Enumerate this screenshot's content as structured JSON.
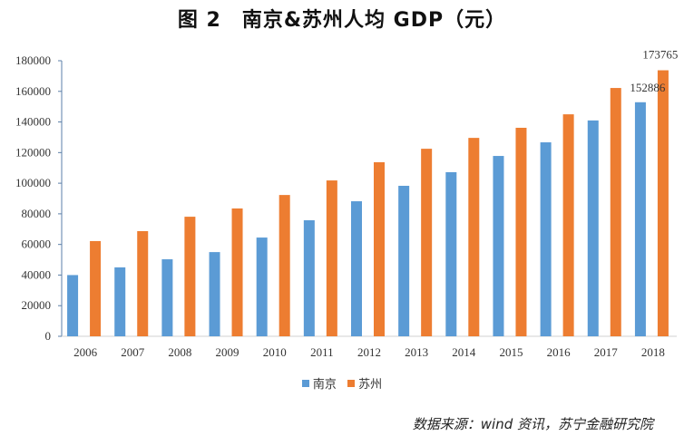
{
  "chart_data": {
    "type": "bar",
    "title": "图 2　南京&苏州人均 GDP（元）",
    "categories": [
      "2006",
      "2007",
      "2008",
      "2009",
      "2010",
      "2011",
      "2012",
      "2013",
      "2014",
      "2015",
      "2016",
      "2017",
      "2018"
    ],
    "series": [
      {
        "name": "南京",
        "color": "#5B9BD5",
        "values": [
          40000,
          45000,
          50300,
          55000,
          64500,
          75800,
          88200,
          98300,
          107200,
          117800,
          126700,
          141000,
          152886
        ]
      },
      {
        "name": "苏州",
        "color": "#ED7D31",
        "values": [
          62200,
          68700,
          78100,
          83500,
          92300,
          101800,
          113700,
          122500,
          129600,
          136200,
          145000,
          162200,
          173765
        ]
      }
    ],
    "data_labels": {
      "南京_2018": "152886",
      "苏州_2018": "173765"
    },
    "ylim": [
      0,
      180000
    ],
    "yticks": [
      "0",
      "20000",
      "40000",
      "60000",
      "80000",
      "100000",
      "120000",
      "140000",
      "160000",
      "180000"
    ],
    "xlabel": "",
    "ylabel": "",
    "grid": false,
    "legend": "bottom"
  },
  "source": "数据来源：wind 资讯，苏宁金融研究院"
}
